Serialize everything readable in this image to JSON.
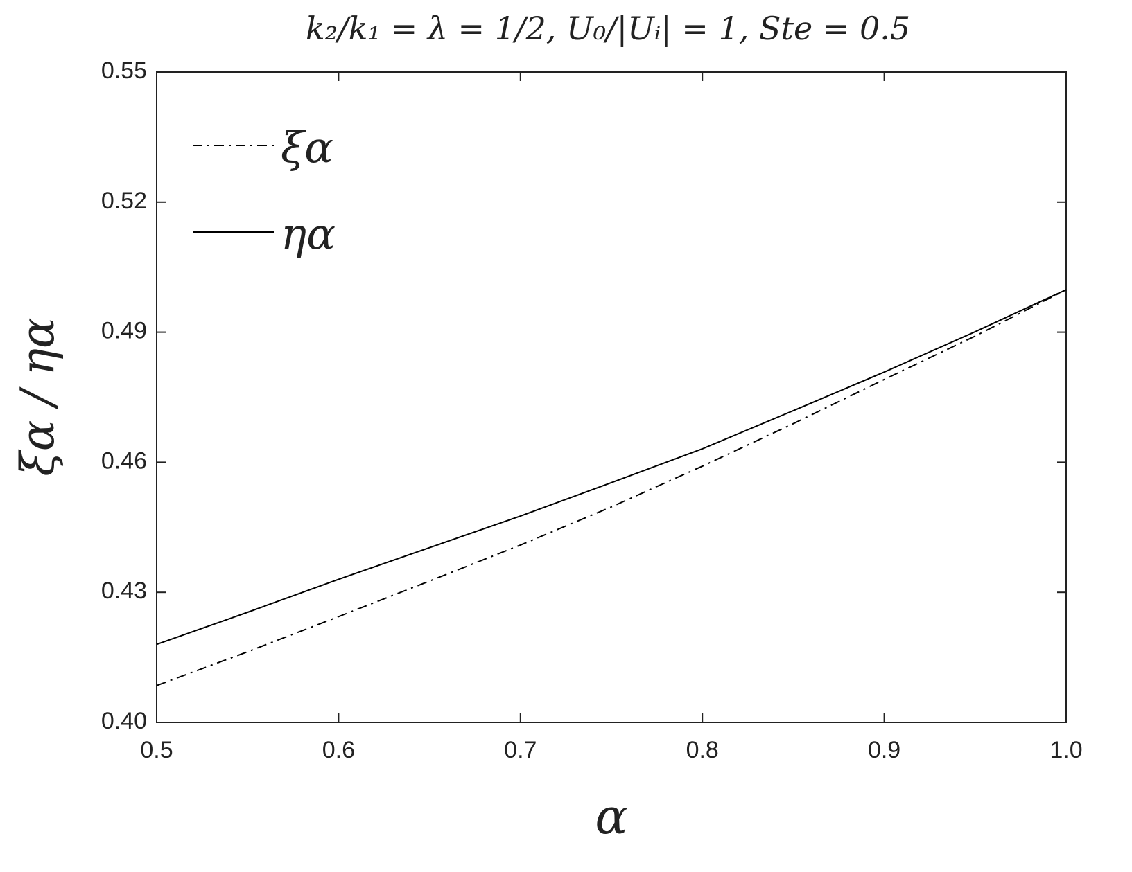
{
  "chart_data": {
    "type": "line",
    "title": "k₂/k₁ = λ = 1/2,    U₀/|Uᵢ| = 1,    Ste = 0.5",
    "x_label": "α",
    "y_label": "ξα / ηα",
    "x": [
      0.5,
      0.55,
      0.6,
      0.65,
      0.7,
      0.75,
      0.8,
      0.85,
      0.9,
      0.95,
      1.0
    ],
    "series": [
      {
        "name": "ξα",
        "color": "#000000",
        "dash": "dash-dot",
        "values": [
          0.4085,
          0.4163,
          0.4244,
          0.4326,
          0.4409,
          0.4497,
          0.4591,
          0.4689,
          0.4791,
          0.4891,
          0.4998
        ]
      },
      {
        "name": "ηα",
        "color": "#000000",
        "dash": "solid",
        "values": [
          0.418,
          0.4254,
          0.433,
          0.4403,
          0.4476,
          0.4553,
          0.4631,
          0.4719,
          0.4808,
          0.4901,
          0.4998
        ]
      }
    ],
    "xlim": [
      0.5,
      1.0
    ],
    "ylim": [
      0.4,
      0.55
    ],
    "xticks": [
      0.5,
      0.6,
      0.7,
      0.8,
      0.9,
      {
        "value": 1,
        "label": "1.0"
      }
    ],
    "yticks": [
      {
        "value": 0.4,
        "label": "0.40"
      },
      0.43,
      0.46,
      0.49,
      0.52,
      0.55
    ],
    "legend": "top-left"
  }
}
